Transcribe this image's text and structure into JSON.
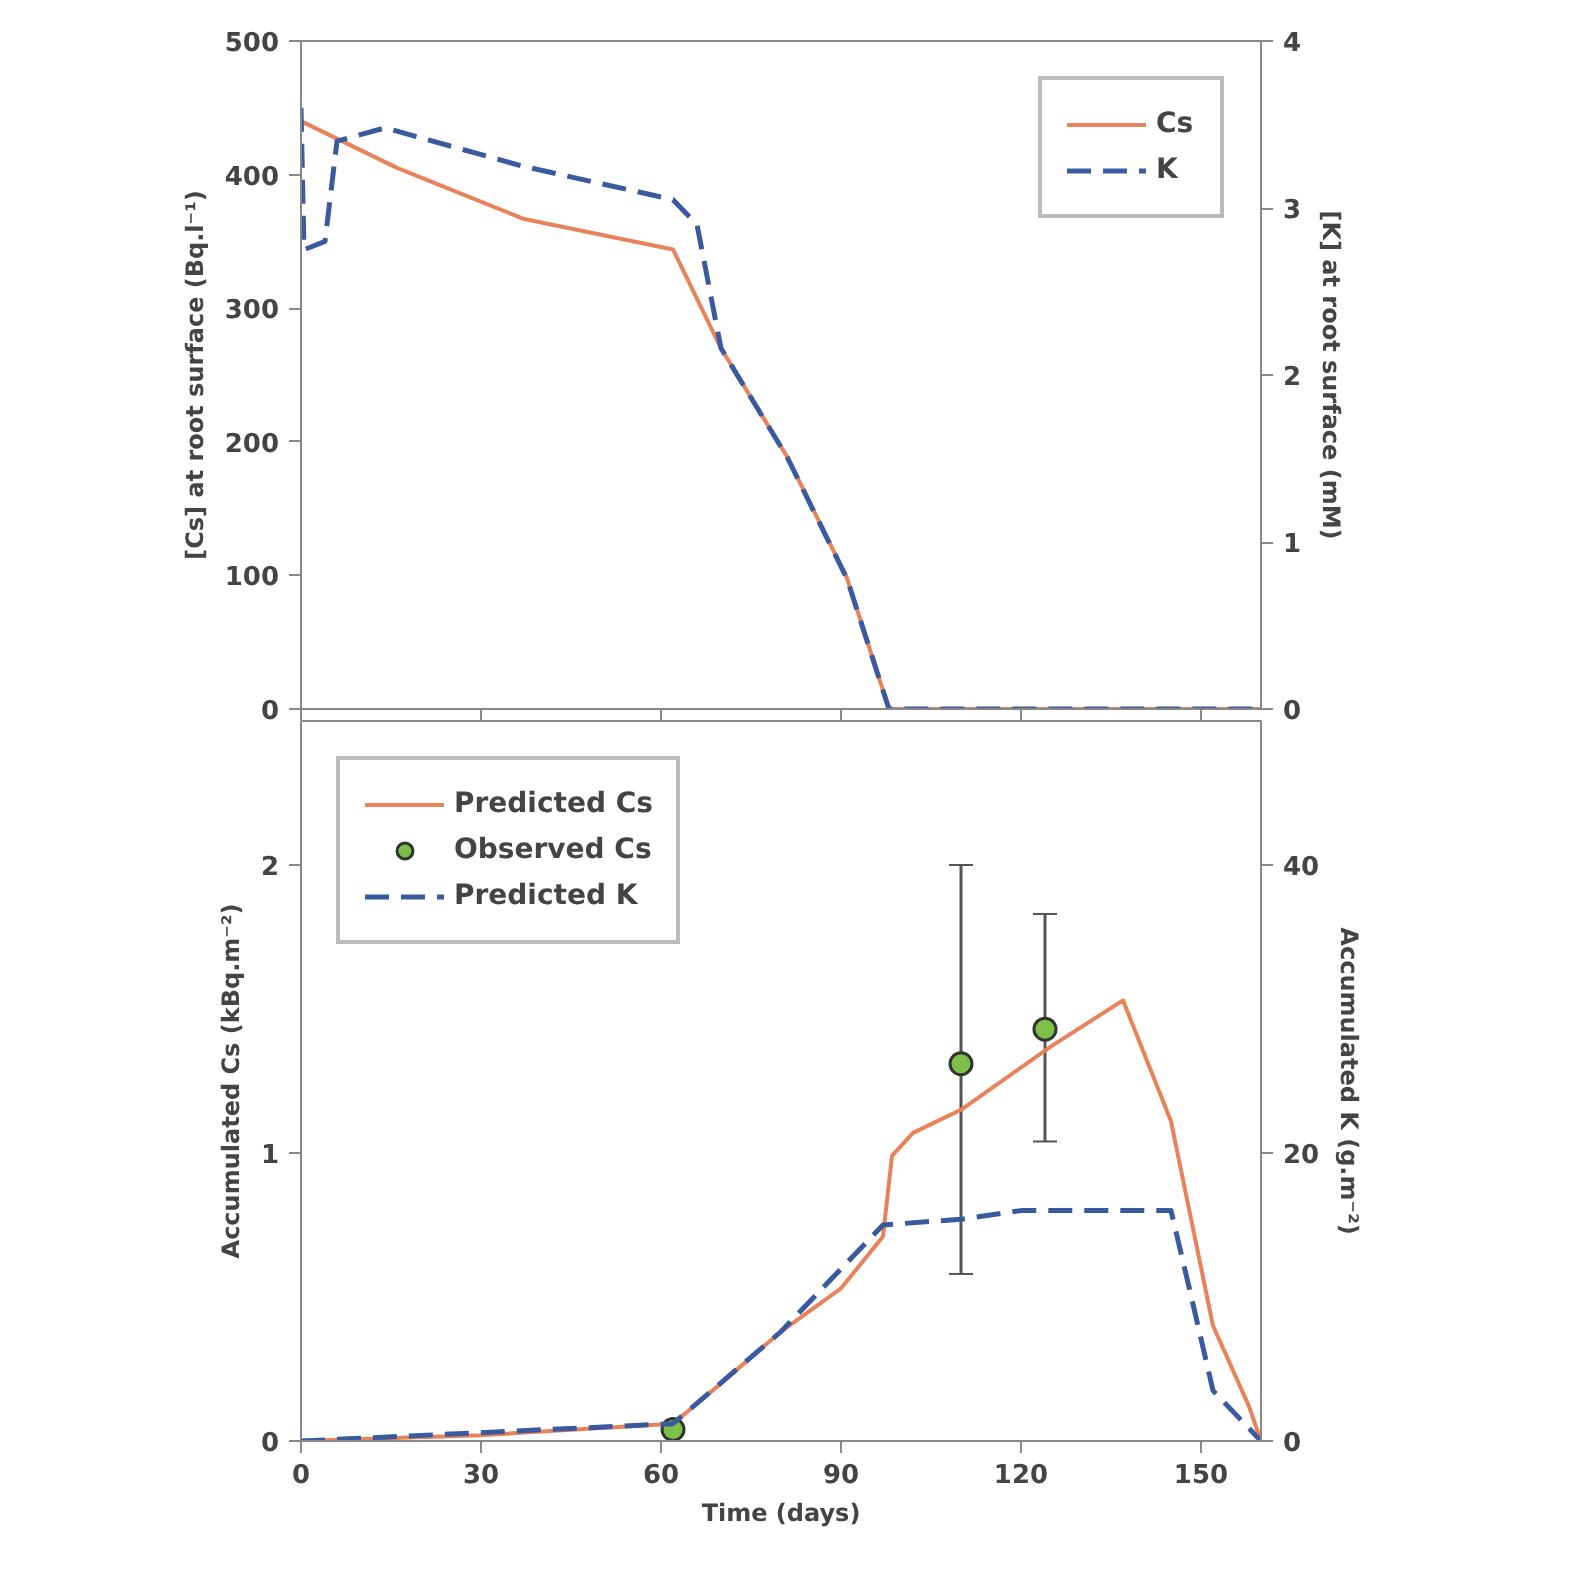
{
  "chart_data": [
    {
      "type": "line",
      "ylabel": "[Cs] at root surface (Bq.l⁻¹)",
      "y2label": "[K] at root surface (mM)",
      "xlim": [
        0,
        160
      ],
      "xticks": [
        0,
        30,
        60,
        90,
        120,
        150
      ],
      "ylim": [
        0,
        500
      ],
      "yticks": [
        0,
        100,
        200,
        300,
        400,
        500
      ],
      "y2lim": [
        0,
        4
      ],
      "y2ticks": [
        0,
        1,
        2,
        3,
        4
      ],
      "tick_labels": "y",
      "grid": false,
      "legend": "top right",
      "series": [
        {
          "name": "Cs",
          "color": "#e8825a",
          "line_style": "solid",
          "x": [
            0,
            16,
            37,
            62,
            70,
            81,
            91,
            98,
            160
          ],
          "values": [
            440,
            405,
            367,
            344,
            270,
            189,
            98,
            0,
            0
          ]
        },
        {
          "name": "K",
          "color": "#3a5aa0",
          "line_style": "dashed",
          "axis": "y2",
          "x": [
            0,
            0.5,
            4,
            6,
            14,
            37,
            62,
            66,
            70,
            81,
            91,
            98,
            160
          ],
          "values": [
            3.6,
            2.75,
            2.8,
            3.4,
            3.48,
            3.25,
            3.05,
            2.9,
            2.16,
            1.51,
            0.78,
            0,
            0
          ]
        }
      ]
    },
    {
      "type": "line",
      "xlabel": "Time (days)",
      "ylabel": "Accumulated Cs (kBq.m⁻²)",
      "y2label": "Accumulated K (g.m⁻²)",
      "xlim": [
        0,
        160
      ],
      "xticks": [
        0,
        30,
        60,
        90,
        120,
        150
      ],
      "ylim": [
        0,
        2.5
      ],
      "yticks": [
        0,
        1,
        2
      ],
      "y2lim": [
        0,
        50
      ],
      "y2ticks": [
        0,
        20,
        40
      ],
      "grid": false,
      "legend": "top left",
      "series": [
        {
          "name": "Predicted Cs",
          "color": "#e8825a",
          "line_style": "solid",
          "x": [
            0,
            30,
            62,
            70,
            80,
            90,
            97,
            98.5,
            102,
            110,
            125,
            137,
            145,
            152,
            158,
            160
          ],
          "values": [
            0,
            0.02,
            0.06,
            0.2,
            0.38,
            0.53,
            0.71,
            0.99,
            1.07,
            1.15,
            1.37,
            1.53,
            1.11,
            0.4,
            0.12,
            0
          ]
        },
        {
          "name": "Observed Cs",
          "type": "scatter",
          "marker": "circle",
          "color": "#7cc04a",
          "x": [
            62,
            110,
            124
          ],
          "values": [
            0.04,
            1.31,
            1.43
          ],
          "errors": [
            null,
            [
              0.58,
              2.0
            ],
            [
              1.04,
              1.83
            ]
          ]
        },
        {
          "name": "Predicted K",
          "color": "#3a5aa0",
          "line_style": "dashed",
          "axis": "y2",
          "x": [
            0,
            62,
            80,
            97,
            110,
            120,
            145,
            148,
            152,
            160
          ],
          "values": [
            0,
            1.2,
            7.6,
            15,
            15.4,
            16,
            16,
            10.7,
            3.5,
            0
          ]
        }
      ]
    }
  ]
}
